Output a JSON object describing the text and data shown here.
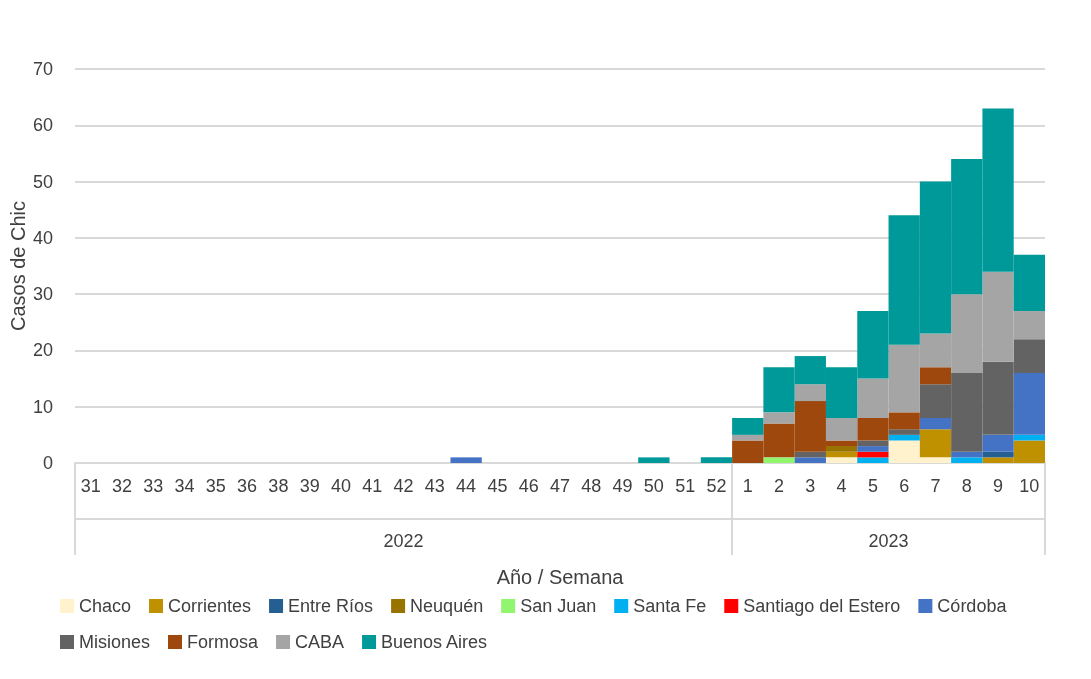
{
  "chart_data": {
    "type": "bar",
    "stacked": true,
    "xlabel": "Año / Semana",
    "ylabel": "Casos de Chic",
    "annotations": [
      "2022",
      "2023"
    ],
    "categories": [
      "31",
      "32",
      "33",
      "34",
      "35",
      "36",
      "38",
      "39",
      "40",
      "41",
      "42",
      "43",
      "44",
      "45",
      "46",
      "47",
      "48",
      "49",
      "50",
      "51",
      "52",
      "1",
      "2",
      "3",
      "4",
      "5",
      "6",
      "7",
      "8",
      "9",
      "10"
    ],
    "ylim": [
      0,
      70
    ],
    "yticks": [
      0,
      10,
      20,
      30,
      40,
      50,
      60,
      70
    ],
    "grid": "y",
    "legend": "bottom",
    "series": [
      {
        "name": "Chaco",
        "color": "#fff2cc",
        "values": [
          0,
          0,
          0,
          0,
          0,
          0,
          0,
          0,
          0,
          0,
          0,
          0,
          0,
          0,
          0,
          0,
          0,
          0,
          0,
          0,
          0,
          0,
          0,
          0,
          1,
          0,
          4,
          1,
          0,
          0,
          0
        ]
      },
      {
        "name": "Corrientes",
        "color": "#bf9000",
        "values": [
          0,
          0,
          0,
          0,
          0,
          0,
          0,
          0,
          0,
          0,
          0,
          0,
          0,
          0,
          0,
          0,
          0,
          0,
          0,
          0,
          0,
          0,
          0,
          0,
          1,
          0,
          0,
          5,
          0,
          1,
          4
        ]
      },
      {
        "name": "Entre Ríos",
        "color": "#255e91",
        "values": [
          0,
          0,
          0,
          0,
          0,
          0,
          0,
          0,
          0,
          0,
          0,
          0,
          0,
          0,
          0,
          0,
          0,
          0,
          0,
          0,
          0,
          0,
          0,
          0,
          0,
          0,
          0,
          0,
          0,
          1,
          0
        ]
      },
      {
        "name": "Neuquén",
        "color": "#997300",
        "values": [
          0,
          0,
          0,
          0,
          0,
          0,
          0,
          0,
          0,
          0,
          0,
          0,
          0,
          0,
          0,
          0,
          0,
          0,
          0,
          0,
          0,
          0,
          0,
          0,
          1,
          0,
          0,
          0,
          0,
          0,
          0
        ]
      },
      {
        "name": "San Juan",
        "color": "#92f56e",
        "values": [
          0,
          0,
          0,
          0,
          0,
          0,
          0,
          0,
          0,
          0,
          0,
          0,
          0,
          0,
          0,
          0,
          0,
          0,
          0,
          0,
          0,
          0,
          1,
          0,
          0,
          0,
          0,
          0,
          0,
          0,
          0
        ]
      },
      {
        "name": "Santa Fe",
        "color": "#00b0f0",
        "values": [
          0,
          0,
          0,
          0,
          0,
          0,
          0,
          0,
          0,
          0,
          0,
          0,
          0,
          0,
          0,
          0,
          0,
          0,
          0,
          0,
          0,
          0,
          0,
          0,
          0,
          1,
          1,
          0,
          1,
          0,
          1
        ]
      },
      {
        "name": "Santiago del Estero",
        "color": "#ff0000",
        "values": [
          0,
          0,
          0,
          0,
          0,
          0,
          0,
          0,
          0,
          0,
          0,
          0,
          0,
          0,
          0,
          0,
          0,
          0,
          0,
          0,
          0,
          0,
          0,
          0,
          0,
          1,
          0,
          0,
          0,
          0,
          0
        ]
      },
      {
        "name": "Córdoba",
        "color": "#4472c4",
        "values": [
          0,
          0,
          0,
          0,
          0,
          0,
          0,
          0,
          0,
          0,
          0,
          0,
          1,
          0,
          0,
          0,
          0,
          0,
          0,
          0,
          0,
          0,
          0,
          1,
          0,
          1,
          0,
          2,
          1,
          3,
          11
        ]
      },
      {
        "name": "Misiones",
        "color": "#636363",
        "values": [
          0,
          0,
          0,
          0,
          0,
          0,
          0,
          0,
          0,
          0,
          0,
          0,
          0,
          0,
          0,
          0,
          0,
          0,
          0,
          0,
          0,
          0,
          0,
          1,
          0,
          1,
          1,
          6,
          14,
          13,
          6
        ]
      },
      {
        "name": "Formosa",
        "color": "#9e480e",
        "values": [
          0,
          0,
          0,
          0,
          0,
          0,
          0,
          0,
          0,
          0,
          0,
          0,
          0,
          0,
          0,
          0,
          0,
          0,
          0,
          0,
          0,
          4,
          6,
          9,
          1,
          4,
          3,
          3,
          0,
          0,
          0
        ]
      },
      {
        "name": "CABA",
        "color": "#a5a5a5",
        "values": [
          0,
          0,
          0,
          0,
          0,
          0,
          0,
          0,
          0,
          0,
          0,
          0,
          0,
          0,
          0,
          0,
          0,
          0,
          0,
          0,
          0,
          1,
          2,
          3,
          4,
          7,
          12,
          6,
          14,
          16,
          5
        ]
      },
      {
        "name": "Buenos Aires",
        "color": "#009999",
        "values": [
          0,
          0,
          0,
          0,
          0,
          0,
          0,
          0,
          0,
          0,
          0,
          0,
          0,
          0,
          0,
          0,
          0,
          0,
          1,
          0,
          1,
          3,
          8,
          5,
          9,
          12,
          23,
          27,
          24,
          29,
          10
        ]
      }
    ]
  }
}
